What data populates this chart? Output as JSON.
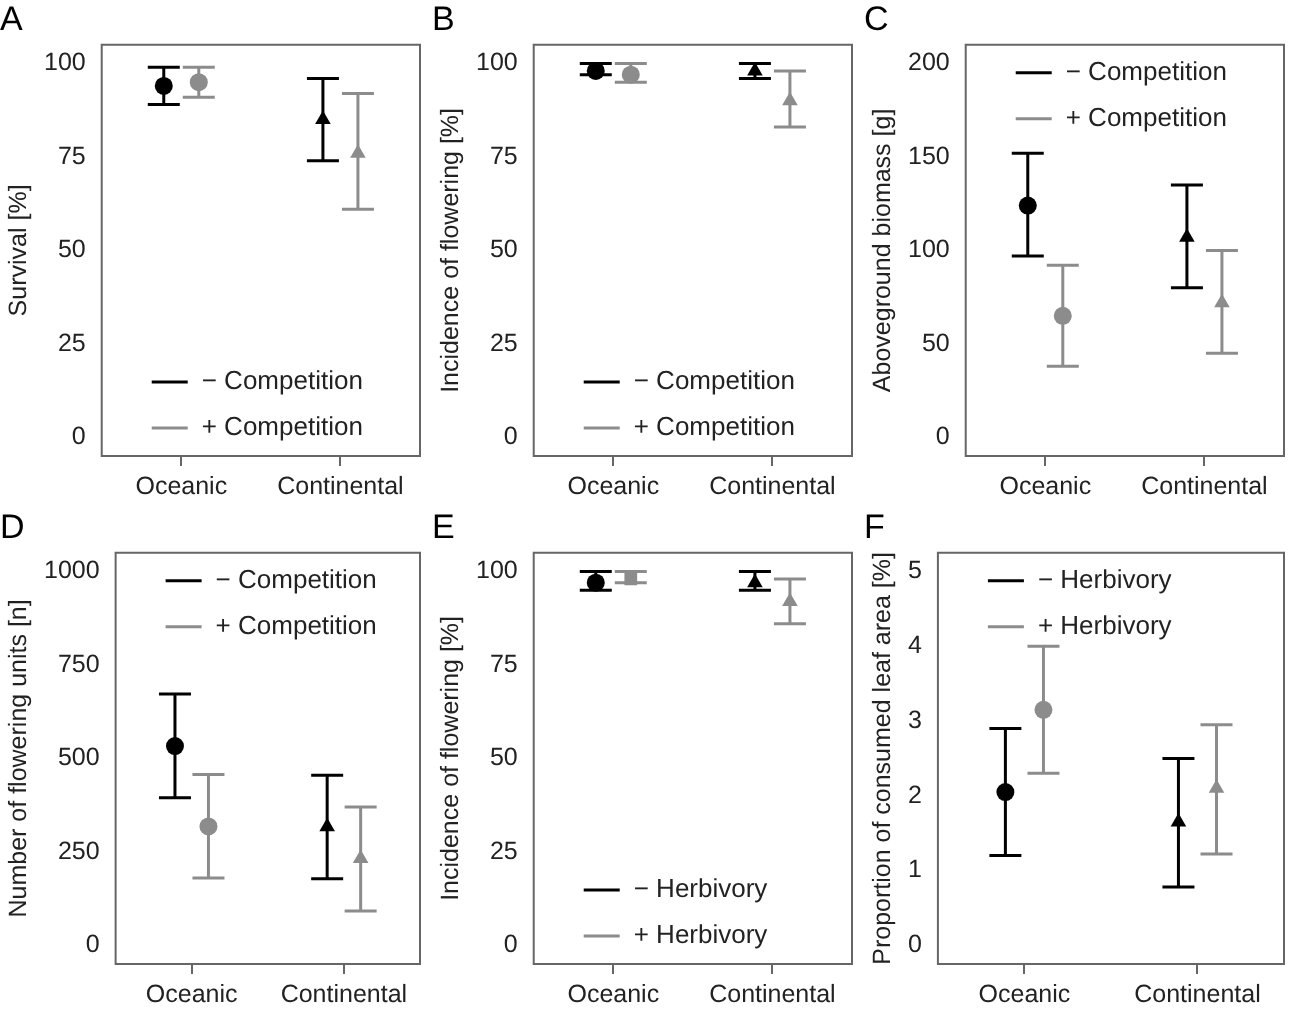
{
  "chart_data": [
    {
      "type": "scatter",
      "title": "A",
      "ylabel": "Survival [%]",
      "categories": [
        "Oceanic",
        "Continental"
      ],
      "ylim": [
        -5,
        105
      ],
      "yticks": [
        0,
        25,
        50,
        75,
        100
      ],
      "grid": false,
      "legend": "bottom",
      "series": [
        {
          "name": "− Competition",
          "color": "#000000",
          "x": [
            "Oceanic"
          ],
          "values": [
            94
          ],
          "errors": [
            [
              89,
              99
            ]
          ],
          "marker": "circle"
        },
        {
          "color": "#000000",
          "x": [
            "Continental"
          ],
          "values": [
            85
          ],
          "errors": [
            [
              74,
              96
            ]
          ],
          "marker": "triangle"
        },
        {
          "name": "+ Competition",
          "color": "#8c8c8c",
          "x": [
            "Oceanic"
          ],
          "values": [
            95
          ],
          "errors": [
            [
              91,
              99
            ]
          ],
          "marker": "circle"
        },
        {
          "color": "#8c8c8c",
          "x": [
            "Continental"
          ],
          "values": [
            76
          ],
          "errors": [
            [
              61,
              92
            ]
          ],
          "marker": "triangle"
        }
      ]
    },
    {
      "type": "scatter",
      "title": "B",
      "ylabel": "Incidence of flowering [%]",
      "categories": [
        "Oceanic",
        "Continental"
      ],
      "ylim": [
        -5,
        105
      ],
      "yticks": [
        0,
        25,
        50,
        75,
        100
      ],
      "grid": false,
      "legend": "bottom",
      "series": [
        {
          "name": "− Competition",
          "color": "#000000",
          "x": [
            "Oceanic"
          ],
          "values": [
            98
          ],
          "errors": [
            [
              97,
              100
            ]
          ],
          "marker": "circle"
        },
        {
          "color": "#000000",
          "x": [
            "Continental"
          ],
          "values": [
            98
          ],
          "errors": [
            [
              96,
              100
            ]
          ],
          "marker": "triangle"
        },
        {
          "name": "+ Competition",
          "color": "#8c8c8c",
          "x": [
            "Oceanic"
          ],
          "values": [
            97
          ],
          "errors": [
            [
              95,
              100
            ]
          ],
          "marker": "circle"
        },
        {
          "color": "#8c8c8c",
          "x": [
            "Continental"
          ],
          "values": [
            90
          ],
          "errors": [
            [
              83,
              98
            ]
          ],
          "marker": "triangle"
        }
      ]
    },
    {
      "type": "scatter",
      "title": "C",
      "ylabel": "Aboveground biomass [g]",
      "categories": [
        "Oceanic",
        "Continental"
      ],
      "ylim": [
        -10,
        210
      ],
      "yticks": [
        0,
        50,
        100,
        150,
        200
      ],
      "grid": false,
      "legend": "top",
      "series": [
        {
          "name": "− Competition",
          "color": "#000000",
          "x": [
            "Oceanic"
          ],
          "values": [
            124
          ],
          "errors": [
            [
              97,
              152
            ]
          ],
          "marker": "circle"
        },
        {
          "color": "#000000",
          "x": [
            "Continental"
          ],
          "values": [
            107
          ],
          "errors": [
            [
              80,
              135
            ]
          ],
          "marker": "triangle"
        },
        {
          "name": "+ Competition",
          "color": "#8c8c8c",
          "x": [
            "Oceanic"
          ],
          "values": [
            65
          ],
          "errors": [
            [
              38,
              92
            ]
          ],
          "marker": "circle"
        },
        {
          "color": "#8c8c8c",
          "x": [
            "Continental"
          ],
          "values": [
            72
          ],
          "errors": [
            [
              45,
              100
            ]
          ],
          "marker": "triangle"
        }
      ]
    },
    {
      "type": "scatter",
      "title": "D",
      "ylabel": "Number of flowering units [n]",
      "categories": [
        "Oceanic",
        "Continental"
      ],
      "ylim": [
        -50,
        1050
      ],
      "yticks": [
        0,
        250,
        500,
        750,
        1000
      ],
      "grid": false,
      "legend": "top",
      "series": [
        {
          "name": "− Competition",
          "color": "#000000",
          "x": [
            "Oceanic"
          ],
          "values": [
            533
          ],
          "errors": [
            [
              395,
              672
            ]
          ],
          "marker": "circle"
        },
        {
          "color": "#000000",
          "x": [
            "Continental"
          ],
          "values": [
            317
          ],
          "errors": [
            [
              178,
              455
            ]
          ],
          "marker": "triangle"
        },
        {
          "name": "+ Competition",
          "color": "#8c8c8c",
          "x": [
            "Oceanic"
          ],
          "values": [
            318
          ],
          "errors": [
            [
              180,
              457
            ]
          ],
          "marker": "circle"
        },
        {
          "color": "#8c8c8c",
          "x": [
            "Continental"
          ],
          "values": [
            232
          ],
          "errors": [
            [
              92,
              370
            ]
          ],
          "marker": "triangle"
        }
      ]
    },
    {
      "type": "scatter",
      "title": "E",
      "ylabel": "Incidence of flowering [%]",
      "categories": [
        "Oceanic",
        "Continental"
      ],
      "ylim": [
        -5,
        105
      ],
      "yticks": [
        0,
        25,
        50,
        75,
        100
      ],
      "grid": false,
      "legend": "bottom",
      "series": [
        {
          "name": "− Herbivory",
          "color": "#000000",
          "x": [
            "Oceanic"
          ],
          "values": [
            97
          ],
          "errors": [
            [
              95,
              100
            ]
          ],
          "marker": "circle"
        },
        {
          "color": "#000000",
          "x": [
            "Continental"
          ],
          "values": [
            97
          ],
          "errors": [
            [
              95,
              100
            ]
          ],
          "marker": "triangle"
        },
        {
          "name": "+ Herbivory",
          "color": "#8c8c8c",
          "x": [
            "Oceanic"
          ],
          "values": [
            98
          ],
          "errors": [
            [
              97,
              100
            ]
          ],
          "marker": "square"
        },
        {
          "color": "#8c8c8c",
          "x": [
            "Continental"
          ],
          "values": [
            92
          ],
          "errors": [
            [
              86,
              98
            ]
          ],
          "marker": "triangle"
        }
      ]
    },
    {
      "type": "scatter",
      "title": "F",
      "ylabel": "Proportion of consumed leaf area [%]",
      "categories": [
        "Oceanic",
        "Continental"
      ],
      "ylim": [
        -0.25,
        5.25
      ],
      "yticks": [
        0,
        1,
        2,
        3,
        4,
        5
      ],
      "grid": false,
      "legend": "top",
      "series": [
        {
          "name": "− Herbivory",
          "color": "#000000",
          "x": [
            "Oceanic"
          ],
          "values": [
            2.05
          ],
          "errors": [
            [
              1.2,
              2.9
            ]
          ],
          "marker": "circle"
        },
        {
          "color": "#000000",
          "x": [
            "Continental"
          ],
          "values": [
            1.65
          ],
          "errors": [
            [
              0.78,
              2.5
            ]
          ],
          "marker": "triangle"
        },
        {
          "name": "+ Herbivory",
          "color": "#8c8c8c",
          "x": [
            "Oceanic"
          ],
          "values": [
            3.15
          ],
          "errors": [
            [
              2.3,
              4.0
            ]
          ],
          "marker": "circle"
        },
        {
          "color": "#8c8c8c",
          "x": [
            "Continental"
          ],
          "values": [
            2.1
          ],
          "errors": [
            [
              1.22,
              2.95
            ]
          ],
          "marker": "triangle"
        }
      ]
    }
  ]
}
